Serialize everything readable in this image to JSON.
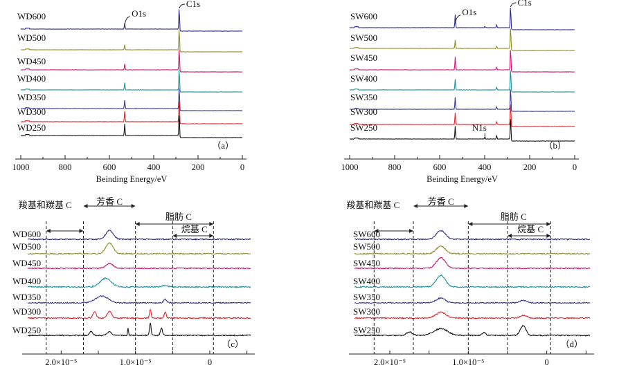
{
  "figure": {
    "panels": [
      {
        "panel_label": "（a）",
        "series": [
          "WD600",
          "WD500",
          "WD450",
          "WD400",
          "WD350",
          "WD300",
          "WD250"
        ],
        "colors": [
          "#2a2a8c",
          "#8d8d2b",
          "#d0146f",
          "#1b8f9e",
          "#35358f",
          "#e0242a",
          "#111111"
        ],
        "peak_labels": [
          "O1s",
          "C1s"
        ],
        "ticks": [
          "1000",
          "800",
          "600",
          "400",
          "200",
          "0"
        ],
        "xlabel": "Beinding Energy/eV"
      },
      {
        "panel_label": "（b）",
        "series": [
          "SW600",
          "SW500",
          "SW450",
          "SW400",
          "SW350",
          "SW300",
          "SW250"
        ],
        "colors": [
          "#2a2a8c",
          "#8d8d2b",
          "#d0146f",
          "#1b8f9e",
          "#35358f",
          "#e0242a",
          "#111111"
        ],
        "peak_labels": [
          "O1s",
          "C1s",
          "N1s"
        ],
        "ticks": [
          "1000",
          "800",
          "600",
          "400",
          "200",
          "0"
        ],
        "xlabel": "Beinding Energy/eV"
      },
      {
        "panel_label": "（c）",
        "series": [
          "WD600",
          "WD500",
          "WD450",
          "WD400",
          "WD350",
          "WD300",
          "WD250"
        ],
        "colors": [
          "#2a2a8c",
          "#8d8d2b",
          "#d0146f",
          "#1b8f9e",
          "#35358f",
          "#e0242a",
          "#111111"
        ],
        "regions": [
          "羧基和羰基 C",
          "芳香 C",
          "脂肪 C",
          "烷基 C"
        ],
        "ticks": [
          "2.0×10⁻⁵",
          "1.0×10⁻⁵",
          "0"
        ]
      },
      {
        "panel_label": "（d）",
        "series": [
          "SW600",
          "SW500",
          "SW450",
          "SW400",
          "SW350",
          "SW300",
          "SW250"
        ],
        "colors": [
          "#2a2a8c",
          "#8d8d2b",
          "#d0146f",
          "#1b8f9e",
          "#35358f",
          "#e0242a",
          "#111111"
        ],
        "regions": [
          "羧基和羰基 C",
          "芳香 C",
          "脂肪 C",
          "烷基 C"
        ],
        "ticks": [
          "2.0×10⁻⁵",
          "1.0×10⁻⁵",
          "0"
        ]
      }
    ]
  },
  "chart_data": [
    {
      "type": "line",
      "panel": "a",
      "xlabel": "Beinding Energy/eV",
      "xlim": [
        1000,
        0
      ],
      "x_ticks": [
        1000,
        800,
        600,
        400,
        200,
        0
      ],
      "series": [
        {
          "name": "WD600",
          "peaks": [
            {
              "x": 531,
              "height": 0.25
            },
            {
              "x": 284.8,
              "height": 1.0
            }
          ]
        },
        {
          "name": "WD500",
          "peaks": [
            {
              "x": 531,
              "height": 0.22
            },
            {
              "x": 284.8,
              "height": 1.0
            }
          ]
        },
        {
          "name": "WD450",
          "peaks": [
            {
              "x": 531,
              "height": 0.25
            },
            {
              "x": 284.8,
              "height": 1.0
            }
          ]
        },
        {
          "name": "WD400",
          "peaks": [
            {
              "x": 531,
              "height": 0.3
            },
            {
              "x": 284.8,
              "height": 1.0
            }
          ]
        },
        {
          "name": "WD350",
          "peaks": [
            {
              "x": 531,
              "height": 0.35
            },
            {
              "x": 284.8,
              "height": 1.0
            }
          ]
        },
        {
          "name": "WD300",
          "peaks": [
            {
              "x": 531,
              "height": 0.45
            },
            {
              "x": 284.8,
              "height": 1.0
            }
          ]
        },
        {
          "name": "WD250",
          "peaks": [
            {
              "x": 531,
              "height": 0.5
            },
            {
              "x": 284.8,
              "height": 1.0
            }
          ]
        }
      ],
      "annotations": [
        "O1s",
        "C1s"
      ]
    },
    {
      "type": "line",
      "panel": "b",
      "xlabel": "Beinding Energy/eV",
      "xlim": [
        1000,
        0
      ],
      "x_ticks": [
        1000,
        800,
        600,
        400,
        200,
        0
      ],
      "series": [
        {
          "name": "SW600",
          "peaks": [
            {
              "x": 531,
              "height": 0.55
            },
            {
              "x": 399,
              "height": 0.05
            },
            {
              "x": 347,
              "height": 0.12
            },
            {
              "x": 284.8,
              "height": 1.0
            }
          ]
        },
        {
          "name": "SW500",
          "peaks": [
            {
              "x": 531,
              "height": 0.35
            },
            {
              "x": 347,
              "height": 0.1
            },
            {
              "x": 284.8,
              "height": 1.0
            }
          ]
        },
        {
          "name": "SW450",
          "peaks": [
            {
              "x": 531,
              "height": 0.55
            },
            {
              "x": 347,
              "height": 0.12
            },
            {
              "x": 284.8,
              "height": 1.0
            }
          ]
        },
        {
          "name": "SW400",
          "peaks": [
            {
              "x": 531,
              "height": 0.45
            },
            {
              "x": 347,
              "height": 0.12
            },
            {
              "x": 284.8,
              "height": 1.0
            }
          ]
        },
        {
          "name": "SW350",
          "peaks": [
            {
              "x": 531,
              "height": 0.5
            },
            {
              "x": 347,
              "height": 0.12
            },
            {
              "x": 284.8,
              "height": 1.0
            }
          ]
        },
        {
          "name": "SW300",
          "peaks": [
            {
              "x": 531,
              "height": 0.5
            },
            {
              "x": 347,
              "height": 0.12
            },
            {
              "x": 284.8,
              "height": 1.0
            }
          ]
        },
        {
          "name": "SW250",
          "peaks": [
            {
              "x": 531,
              "height": 0.55
            },
            {
              "x": 399,
              "height": 0.08
            },
            {
              "x": 347,
              "height": 0.15
            },
            {
              "x": 284.8,
              "height": 1.0
            }
          ]
        }
      ],
      "annotations": [
        "O1s",
        "C1s",
        "N1s"
      ]
    },
    {
      "type": "line",
      "panel": "c",
      "xlim": [
        2.45e-05,
        -5.5e-06
      ],
      "x_ticks": [
        2e-05,
        1e-05,
        0
      ],
      "series": [
        {
          "name": "WD600",
          "peaks": [
            {
              "x": 1.35e-05,
              "height": 0.9,
              "width": 7e-07
            }
          ]
        },
        {
          "name": "WD500",
          "peaks": [
            {
              "x": 1.35e-05,
              "height": 1.1,
              "width": 7e-07
            }
          ]
        },
        {
          "name": "WD450",
          "peaks": [
            {
              "x": 1.35e-05,
              "height": 0.5,
              "width": 7e-07
            }
          ]
        },
        {
          "name": "WD400",
          "peaks": [
            {
              "x": 1.4e-05,
              "height": 0.9,
              "width": 1e-06
            },
            {
              "x": 6e-06,
              "height": 0.15,
              "width": 5e-07
            }
          ]
        },
        {
          "name": "WD350",
          "peaks": [
            {
              "x": 1.45e-05,
              "height": 0.7,
              "width": 1.2e-06
            },
            {
              "x": 6e-06,
              "height": 0.35,
              "width": 3e-07
            }
          ]
        },
        {
          "name": "WD300",
          "peaks": [
            {
              "x": 1.55e-05,
              "height": 0.7,
              "width": 3e-07
            },
            {
              "x": 1.35e-05,
              "height": 0.7,
              "width": 4e-07
            },
            {
              "x": 8e-06,
              "height": 0.9,
              "width": 1.5e-07
            },
            {
              "x": 6e-06,
              "height": 0.6,
              "width": 2e-07
            }
          ]
        },
        {
          "name": "WD250",
          "peaks": [
            {
              "x": 1.6e-05,
              "height": 0.4,
              "width": 3e-07
            },
            {
              "x": 1.35e-05,
              "height": 0.4,
              "width": 4e-07
            },
            {
              "x": 1.1e-05,
              "height": 0.8,
              "width": 8e-08
            },
            {
              "x": 8e-06,
              "height": 1.3,
              "width": 1.5e-07
            },
            {
              "x": 6.5e-06,
              "height": 0.7,
              "width": 2e-07
            }
          ]
        }
      ],
      "regions": [
        {
          "label": "羧基和羰基 C",
          "from": 2.2e-05,
          "to": 1.7e-05
        },
        {
          "label": "芳香 C",
          "from": 1.7e-05,
          "to": 1e-05
        },
        {
          "label": "脂肪 C",
          "from": 1e-05,
          "to": -5e-07
        },
        {
          "label": "烷基 C",
          "from": 5e-06,
          "to": -5e-07
        }
      ]
    },
    {
      "type": "line",
      "panel": "d",
      "xlim": [
        2.45e-05,
        -5.5e-06
      ],
      "x_ticks": [
        2e-05,
        1e-05,
        0
      ],
      "series": [
        {
          "name": "SW600",
          "peaks": [
            {
              "x": 1.35e-05,
              "height": 0.9,
              "width": 8e-07
            }
          ]
        },
        {
          "name": "SW500",
          "peaks": [
            {
              "x": 1.35e-05,
              "height": 0.8,
              "width": 8e-07
            }
          ]
        },
        {
          "name": "SW450",
          "peaks": [
            {
              "x": 1.35e-05,
              "height": 1.1,
              "width": 8e-07
            }
          ]
        },
        {
          "name": "SW400",
          "peaks": [
            {
              "x": 1.35e-05,
              "height": 1.2,
              "width": 8e-07
            }
          ]
        },
        {
          "name": "SW350",
          "peaks": [
            {
              "x": 1.35e-05,
              "height": 0.5,
              "width": 8e-07
            },
            {
              "x": 3e-06,
              "height": 0.25,
              "width": 6e-07
            }
          ]
        },
        {
          "name": "SW300",
          "peaks": [
            {
              "x": 1.35e-05,
              "height": 0.6,
              "width": 9e-07
            },
            {
              "x": 3e-06,
              "height": 0.3,
              "width": 6e-07
            }
          ]
        },
        {
          "name": "SW250",
          "peaks": [
            {
              "x": 1.75e-05,
              "height": 0.35,
              "width": 5e-07
            },
            {
              "x": 1.35e-05,
              "height": 0.7,
              "width": 1.2e-06
            },
            {
              "x": 8e-06,
              "height": 0.3,
              "width": 3e-07
            },
            {
              "x": 3e-06,
              "height": 1.0,
              "width": 5e-07
            }
          ]
        }
      ],
      "regions": [
        {
          "label": "羧基和羰基 C",
          "from": 2.2e-05,
          "to": 1.7e-05
        },
        {
          "label": "芳香 C",
          "from": 1.7e-05,
          "to": 1e-05
        },
        {
          "label": "脂肪 C",
          "from": 1e-05,
          "to": -5e-07
        },
        {
          "label": "烷基 C",
          "from": 5e-06,
          "to": -5e-07
        }
      ]
    }
  ]
}
